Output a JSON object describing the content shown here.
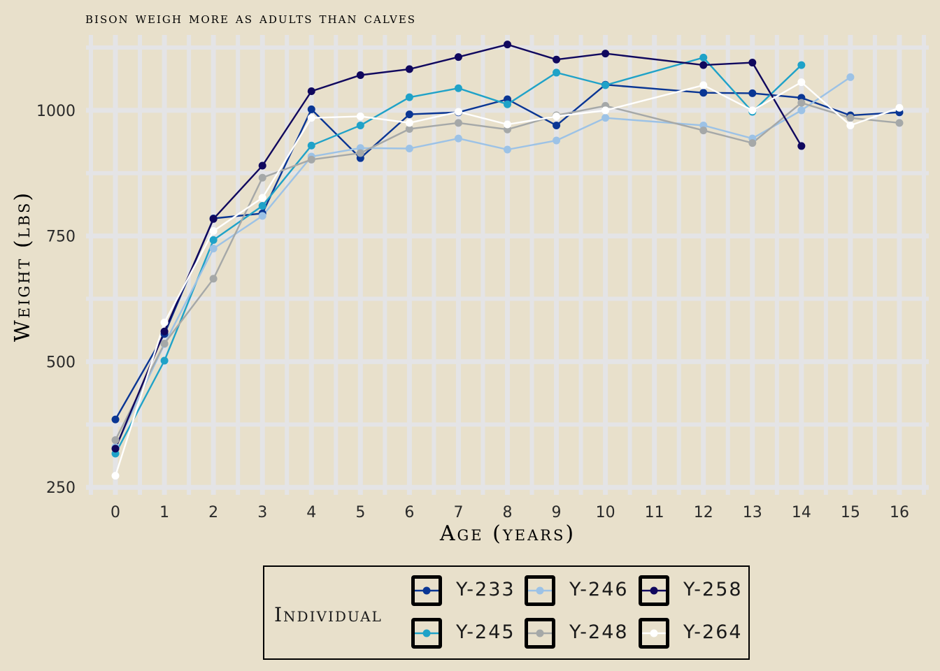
{
  "chart_data": {
    "type": "line",
    "title": "bison weigh more as adults than calves",
    "xlabel": "Age (years)",
    "ylabel": "Weight (lbs)",
    "x_ticks": [
      "0",
      "1",
      "2",
      "3",
      "4",
      "5",
      "6",
      "7",
      "8",
      "9",
      "10",
      "11",
      "12",
      "13",
      "14",
      "15",
      "16"
    ],
    "y_ticks": [
      "250",
      "500",
      "750",
      "1000"
    ],
    "xlim": [
      -0.6,
      16.6
    ],
    "ylim": [
      235,
      1150
    ],
    "grid": true,
    "legend_title": "Individual",
    "legend_position": "bottom",
    "series": [
      {
        "name": "Y-233",
        "color": "#0a3694",
        "x": [
          0,
          1,
          2,
          3,
          4,
          5,
          6,
          7,
          8,
          9,
          10,
          12,
          13,
          14,
          15,
          16
        ],
        "y": [
          385,
          555,
          785,
          795,
          1002,
          905,
          992,
          996,
          1022,
          970,
          1051,
          1035,
          1034,
          1025,
          990,
          996
        ]
      },
      {
        "name": "Y-245",
        "color": "#1fa2c8",
        "x": [
          0,
          1,
          2,
          3,
          4,
          5,
          6,
          7,
          8,
          9,
          10,
          12,
          13,
          14
        ],
        "y": [
          317,
          502,
          742,
          810,
          930,
          970,
          1026,
          1044,
          1012,
          1075,
          1050,
          1105,
          997,
          1090
        ]
      },
      {
        "name": "Y-246",
        "color": "#9cc2e6",
        "x": [
          0,
          1,
          2,
          3,
          4,
          5,
          6,
          7,
          8,
          9,
          10,
          12,
          13,
          14,
          15
        ],
        "y": [
          330,
          535,
          725,
          790,
          908,
          925,
          924,
          944,
          922,
          940,
          985,
          970,
          944,
          1000,
          1066
        ]
      },
      {
        "name": "Y-248",
        "color": "#a5a8a8",
        "x": [
          0,
          1,
          2,
          3,
          4,
          5,
          6,
          7,
          8,
          9,
          10,
          12,
          13,
          14,
          15,
          16
        ],
        "y": [
          344,
          536,
          665,
          866,
          902,
          915,
          963,
          975,
          962,
          990,
          1009,
          960,
          935,
          1015,
          985,
          975
        ]
      },
      {
        "name": "Y-258",
        "color": "#10085e",
        "x": [
          0,
          1,
          2,
          3,
          4,
          5,
          6,
          7,
          8,
          9,
          10,
          12,
          13,
          14
        ],
        "y": [
          327,
          560,
          784,
          890,
          1038,
          1070,
          1082,
          1106,
          1131,
          1101,
          1113,
          1090,
          1095,
          929
        ]
      },
      {
        "name": "Y-264",
        "color": "#ffffff",
        "x": [
          0,
          1,
          2,
          3,
          4,
          5,
          6,
          7,
          8,
          9,
          10,
          12,
          13,
          14,
          15,
          16
        ],
        "y": [
          273,
          578,
          760,
          826,
          985,
          988,
          975,
          997,
          972,
          988,
          1000,
          1050,
          1000,
          1056,
          970,
          1005
        ]
      }
    ]
  }
}
